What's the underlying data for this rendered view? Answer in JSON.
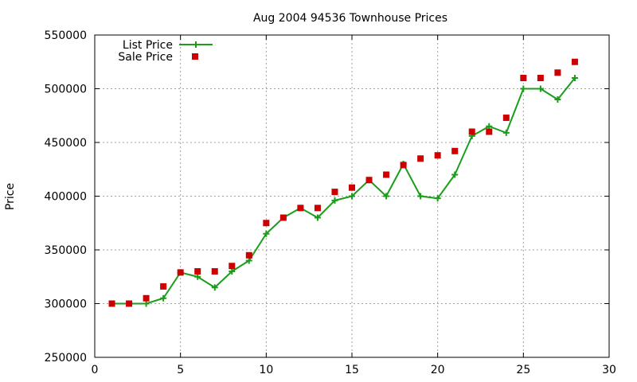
{
  "chart_data": {
    "type": "line",
    "title": "Aug 2004 94536 Townhouse Prices",
    "xlabel": "",
    "ylabel": "Price",
    "xlim": [
      0,
      30
    ],
    "ylim": [
      250000,
      550000
    ],
    "xticks": [
      "0",
      "5",
      "10",
      "15",
      "20",
      "25",
      "30"
    ],
    "yticks": [
      "250000",
      "300000",
      "350000",
      "400000",
      "450000",
      "500000",
      "550000"
    ],
    "grid": true,
    "legend_position": "top-left",
    "x": [
      1,
      2,
      3,
      4,
      5,
      6,
      7,
      8,
      9,
      10,
      11,
      12,
      13,
      14,
      15,
      16,
      17,
      18,
      19,
      20,
      21,
      22,
      23,
      24,
      25,
      26,
      27,
      28
    ],
    "series": [
      {
        "name": "List Price",
        "style": "line-with-plus-markers",
        "color": "#1a9e1a",
        "values": [
          300000,
          300000,
          300000,
          305000,
          329000,
          325000,
          315000,
          330000,
          340000,
          365000,
          380000,
          389000,
          380000,
          396000,
          400000,
          415000,
          400000,
          430000,
          400000,
          398000,
          420000,
          456000,
          465000,
          459000,
          500000,
          500000,
          490000,
          510000
        ]
      },
      {
        "name": "Sale Price",
        "style": "square-markers",
        "color": "#cc0000",
        "values": [
          300000,
          300000,
          305000,
          316000,
          329000,
          330000,
          330000,
          335000,
          345000,
          375000,
          380000,
          389000,
          389000,
          404000,
          408000,
          415000,
          420000,
          429000,
          435000,
          438000,
          442000,
          460000,
          460000,
          473000,
          510000,
          510000,
          515000,
          525000
        ]
      }
    ]
  }
}
